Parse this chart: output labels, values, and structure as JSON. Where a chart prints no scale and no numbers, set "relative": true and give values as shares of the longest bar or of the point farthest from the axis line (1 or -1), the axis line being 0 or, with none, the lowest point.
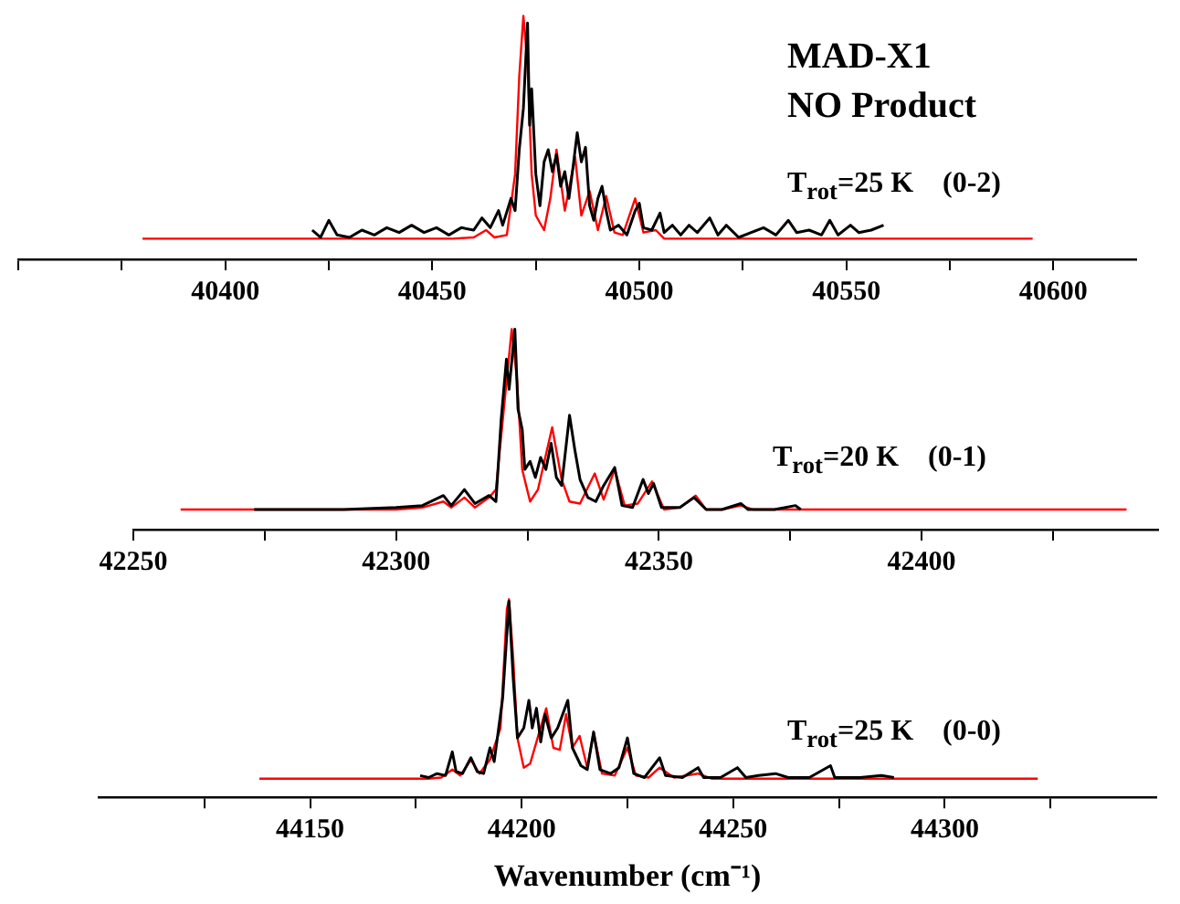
{
  "chart_data": [
    {
      "type": "line",
      "title": "MAD-X1",
      "subtitle": "NO Product",
      "annotations": [
        "T$_{rot}$=25 K    (0-2)"
      ],
      "relative": true,
      "tick_labels": "x",
      "marker": "none",
      "xlim": [
        40350,
        40620
      ],
      "xticks": [
        {
          "value": 40350,
          "label": null
        },
        {
          "value": 40375,
          "label": null
        },
        40400,
        {
          "value": 40425,
          "label": null
        },
        40450,
        {
          "value": 40475,
          "label": null
        },
        40500,
        {
          "value": 40525,
          "label": null
        },
        40550,
        {
          "value": 40575,
          "label": null
        },
        40600
      ],
      "series": [
        {
          "color": "#000000",
          "x": [
            40421,
            40423,
            40425,
            40427,
            40430,
            40433,
            40436,
            40439,
            40442,
            40445,
            40448,
            40451,
            40454,
            40457,
            40460,
            40462,
            40464,
            40466,
            40467,
            40469,
            40470,
            40471,
            40472,
            40473,
            40473.5,
            40474,
            40475,
            40476,
            40477,
            40478,
            40479,
            40480,
            40481,
            40482,
            40483,
            40484,
            40485,
            40486,
            40487,
            40488,
            40489,
            40490,
            40491,
            40492,
            40493,
            40495,
            40497,
            40499,
            40500,
            40501,
            40503,
            40505,
            40506,
            40508,
            40510,
            40512,
            40514,
            40517,
            40519,
            40521,
            40524,
            40527,
            40530,
            40533,
            40536,
            40538,
            40541,
            40544,
            40546,
            40548,
            40551,
            40553,
            40556,
            40559
          ],
          "values": [
            0.12,
            0.09,
            0.16,
            0.1,
            0.09,
            0.12,
            0.1,
            0.13,
            0.11,
            0.14,
            0.11,
            0.13,
            0.1,
            0.13,
            0.12,
            0.17,
            0.13,
            0.2,
            0.14,
            0.25,
            0.2,
            0.45,
            0.62,
            0.97,
            0.55,
            0.7,
            0.35,
            0.22,
            0.4,
            0.45,
            0.36,
            0.43,
            0.3,
            0.36,
            0.25,
            0.38,
            0.52,
            0.4,
            0.46,
            0.22,
            0.16,
            0.25,
            0.3,
            0.2,
            0.12,
            0.14,
            0.1,
            0.2,
            0.23,
            0.13,
            0.12,
            0.19,
            0.11,
            0.14,
            0.1,
            0.14,
            0.11,
            0.17,
            0.1,
            0.14,
            0.09,
            0.11,
            0.13,
            0.1,
            0.16,
            0.11,
            0.12,
            0.1,
            0.16,
            0.1,
            0.14,
            0.11,
            0.12,
            0.14
          ]
        },
        {
          "color": "#ff0000",
          "x": [
            40380,
            40455,
            40460,
            40463,
            40465,
            40468,
            40470,
            40471,
            40472,
            40473,
            40474,
            40475,
            40477,
            40478.5,
            40480,
            40482,
            40484.5,
            40486,
            40488,
            40490,
            40492,
            40494,
            40496,
            40499,
            40501,
            40504,
            40506,
            40595
          ],
          "values": [
            0.085,
            0.085,
            0.09,
            0.12,
            0.09,
            0.1,
            0.35,
            0.75,
            1.0,
            0.8,
            0.35,
            0.18,
            0.12,
            0.25,
            0.45,
            0.2,
            0.42,
            0.18,
            0.28,
            0.12,
            0.26,
            0.11,
            0.1,
            0.25,
            0.11,
            0.12,
            0.085,
            0.085
          ]
        }
      ]
    },
    {
      "type": "line",
      "annotations": [
        "T$_{rot}$=20 K    (0-1)"
      ],
      "relative": true,
      "tick_labels": "x",
      "marker": "none",
      "xlim": [
        42250,
        42445
      ],
      "xticks": [
        42250,
        {
          "value": 42275,
          "label": null
        },
        42300,
        {
          "value": 42325,
          "label": null
        },
        42350,
        {
          "value": 42375,
          "label": null
        },
        42400,
        {
          "value": 42425,
          "label": null
        }
      ],
      "series": [
        {
          "color": "#000000",
          "x": [
            42273,
            42290,
            42300,
            42305,
            42309,
            42310.5,
            42313,
            42315,
            42317.7,
            42319,
            42320,
            42321,
            42321.5,
            42322.6,
            42323.2,
            42324,
            42324.5,
            42325.5,
            42326.5,
            42327.5,
            42328.5,
            42329.5,
            42330.5,
            42331.5,
            42333,
            42334,
            42335,
            42336.5,
            42338,
            42339.5,
            42341.6,
            42343,
            42345,
            42347,
            42348,
            42349,
            42350.5,
            42354,
            42356.7,
            42359,
            42362,
            42365.6,
            42367,
            42372,
            42376,
            42377
          ],
          "values": [
            0.1,
            0.1,
            0.11,
            0.12,
            0.17,
            0.12,
            0.2,
            0.13,
            0.17,
            0.14,
            0.55,
            0.85,
            0.7,
            1.0,
            0.6,
            0.5,
            0.3,
            0.34,
            0.26,
            0.36,
            0.3,
            0.43,
            0.26,
            0.22,
            0.57,
            0.4,
            0.25,
            0.16,
            0.14,
            0.22,
            0.31,
            0.12,
            0.11,
            0.25,
            0.18,
            0.23,
            0.11,
            0.11,
            0.16,
            0.1,
            0.1,
            0.13,
            0.1,
            0.1,
            0.12,
            0.1
          ]
        },
        {
          "color": "#ff0000",
          "x": [
            42259,
            42300,
            42305,
            42309,
            42310.5,
            42313,
            42315,
            42317.7,
            42319,
            42320.5,
            42322,
            42323,
            42324,
            42325.5,
            42327,
            42329.7,
            42331.5,
            42333,
            42335,
            42337.8,
            42339.5,
            42341.6,
            42343.5,
            42346,
            42348.7,
            42351,
            42354,
            42357,
            42359,
            42362,
            42365.6,
            42368,
            42439
          ],
          "values": [
            0.1,
            0.1,
            0.11,
            0.14,
            0.11,
            0.16,
            0.11,
            0.16,
            0.2,
            0.6,
            1.0,
            0.75,
            0.3,
            0.14,
            0.2,
            0.51,
            0.25,
            0.14,
            0.13,
            0.28,
            0.15,
            0.3,
            0.12,
            0.13,
            0.24,
            0.1,
            0.11,
            0.17,
            0.1,
            0.1,
            0.12,
            0.1,
            0.1
          ]
        }
      ]
    },
    {
      "type": "line",
      "xlabel": "Wavenumber (cm⁻¹)",
      "annotations": [
        "T$_{rot}$=25 K    (0-0)"
      ],
      "relative": true,
      "tick_labels": "x",
      "marker": "none",
      "xlim": [
        44100,
        44350
      ],
      "xticks": [
        {
          "value": 44125,
          "label": null
        },
        44150,
        {
          "value": 44175,
          "label": null
        },
        44200,
        {
          "value": 44225,
          "label": null
        },
        44250,
        {
          "value": 44275,
          "label": null
        },
        44300,
        {
          "value": 44325,
          "label": null
        }
      ],
      "series": [
        {
          "color": "#000000",
          "x": [
            44176,
            44178,
            44180,
            44182,
            44183.6,
            44184.5,
            44186,
            44188,
            44189.5,
            44191,
            44192.5,
            44193.5,
            44195.5,
            44197,
            44198,
            44199,
            44200.5,
            44201.7,
            44202.5,
            44203.5,
            44204.5,
            44205.5,
            44207,
            44208.5,
            44210.9,
            44212,
            44214,
            44215.5,
            44217,
            44218.5,
            44221,
            44223,
            44225,
            44226.5,
            44229,
            44232.6,
            44234,
            44238,
            44241.7,
            44243,
            44247,
            44251,
            44253,
            44256,
            44260,
            44263,
            44268,
            44273,
            44274,
            44280,
            44285,
            44288
          ],
          "values": [
            0.11,
            0.1,
            0.12,
            0.11,
            0.23,
            0.13,
            0.12,
            0.2,
            0.13,
            0.12,
            0.25,
            0.18,
            0.5,
            0.99,
            0.6,
            0.3,
            0.35,
            0.49,
            0.35,
            0.45,
            0.28,
            0.42,
            0.3,
            0.35,
            0.49,
            0.25,
            0.16,
            0.14,
            0.33,
            0.14,
            0.12,
            0.15,
            0.3,
            0.12,
            0.1,
            0.2,
            0.11,
            0.1,
            0.15,
            0.1,
            0.1,
            0.15,
            0.1,
            0.11,
            0.12,
            0.1,
            0.1,
            0.16,
            0.1,
            0.1,
            0.11,
            0.1
          ]
        },
        {
          "color": "#ff0000",
          "x": [
            44138,
            44178,
            44181,
            44183.6,
            44185.5,
            44188,
            44190,
            44192.5,
            44195,
            44196.5,
            44197,
            44198,
            44199,
            44200.5,
            44202,
            44205.8,
            44207.5,
            44209,
            44210.5,
            44212,
            44213.7,
            44215.5,
            44217,
            44219,
            44222,
            44225,
            44227,
            44230,
            44232.6,
            44236,
            44241.7,
            44245,
            44322
          ],
          "values": [
            0.094,
            0.094,
            0.1,
            0.14,
            0.11,
            0.19,
            0.12,
            0.19,
            0.35,
            0.95,
            1.0,
            0.7,
            0.3,
            0.15,
            0.17,
            0.45,
            0.25,
            0.24,
            0.42,
            0.25,
            0.31,
            0.15,
            0.33,
            0.12,
            0.11,
            0.25,
            0.11,
            0.1,
            0.15,
            0.1,
            0.12,
            0.094,
            0.094
          ]
        }
      ]
    }
  ]
}
